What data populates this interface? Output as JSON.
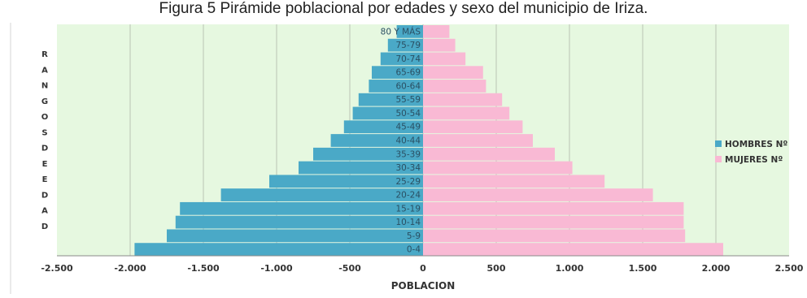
{
  "caption": "Figura 5 Pirámide poblacional por edades y sexo del municipio de Iriza.",
  "chart_data": {
    "type": "bar",
    "orientation": "horizontal",
    "layout": "population-pyramid",
    "categories": [
      "0-4",
      "5-9",
      "10-14",
      "15-19",
      "20-24",
      "25-29",
      "30-34",
      "35-39",
      "40-44",
      "45-49",
      "50-54",
      "55-59",
      "60-64",
      "65-69",
      "70-74",
      "75-79",
      "80 Y MÁS"
    ],
    "series": [
      {
        "name": "HOMBRES Nº",
        "color": "#4aa9c7",
        "values": [
          -1970,
          -1750,
          -1690,
          -1660,
          -1380,
          -1050,
          -850,
          -750,
          -630,
          -540,
          -480,
          -440,
          -370,
          -350,
          -290,
          -240,
          -180
        ]
      },
      {
        "name": "MUJERES Nº",
        "color": "#f9b9d4",
        "values": [
          2050,
          1790,
          1780,
          1780,
          1570,
          1240,
          1020,
          900,
          750,
          680,
          590,
          540,
          430,
          410,
          290,
          220,
          180
        ]
      }
    ],
    "xlabel": "POBLACION",
    "ylabel": "RANGOS DE EDAD",
    "xlim": [
      -2500,
      2500
    ],
    "xticks": [
      "-2.500",
      "-2.000",
      "-1.500",
      "-1.000",
      "-500",
      "0",
      "500",
      "1.000",
      "1.500",
      "2.000",
      "2.500"
    ],
    "grid": "vertical",
    "legend_position": "right",
    "plot_background": "#e6f8e0"
  }
}
